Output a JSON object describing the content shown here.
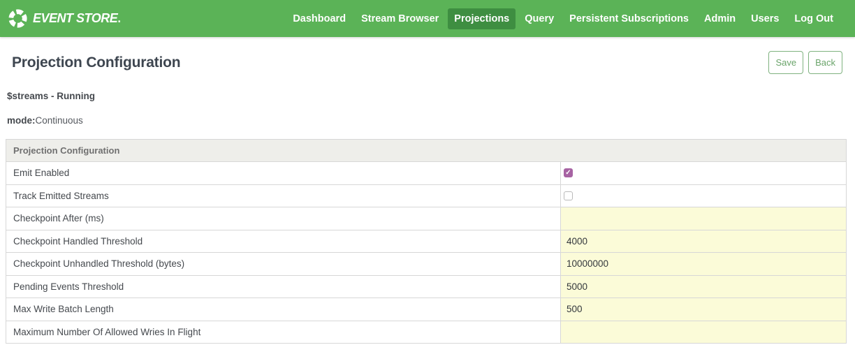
{
  "nav": {
    "brand": "EVENT STORE",
    "brand_suffix": ".",
    "items": [
      {
        "label": "Dashboard",
        "active": false
      },
      {
        "label": "Stream Browser",
        "active": false
      },
      {
        "label": "Projections",
        "active": true
      },
      {
        "label": "Query",
        "active": false
      },
      {
        "label": "Persistent Subscriptions",
        "active": false
      },
      {
        "label": "Admin",
        "active": false
      },
      {
        "label": "Users",
        "active": false
      },
      {
        "label": "Log Out",
        "active": false
      }
    ]
  },
  "page": {
    "title": "Projection Configuration",
    "save_label": "Save",
    "back_label": "Back",
    "status_line": "$streams - Running",
    "mode_label": "mode:",
    "mode_value": "Continuous"
  },
  "config_table": {
    "header": "Projection Configuration",
    "rows": [
      {
        "label": "Emit Enabled",
        "type": "checkbox",
        "checked": true
      },
      {
        "label": "Track Emitted Streams",
        "type": "checkbox",
        "checked": false
      },
      {
        "label": "Checkpoint After (ms)",
        "type": "input",
        "value": ""
      },
      {
        "label": "Checkpoint Handled Threshold",
        "type": "input",
        "value": "4000"
      },
      {
        "label": "Checkpoint Unhandled Threshold (bytes)",
        "type": "input",
        "value": "10000000"
      },
      {
        "label": "Pending Events Threshold",
        "type": "input",
        "value": "5000"
      },
      {
        "label": "Max Write Batch Length",
        "type": "input",
        "value": "500"
      },
      {
        "label": "Maximum Number Of Allowed Wries In Flight",
        "type": "input",
        "value": ""
      }
    ]
  },
  "colors": {
    "nav_green": "#5bb357",
    "nav_active_green": "#3e8e41",
    "input_yellow": "#fbfbd8",
    "checkbox_purple": "#a763a3",
    "button_green": "#6aa46a",
    "title_slate": "#3e4650"
  }
}
